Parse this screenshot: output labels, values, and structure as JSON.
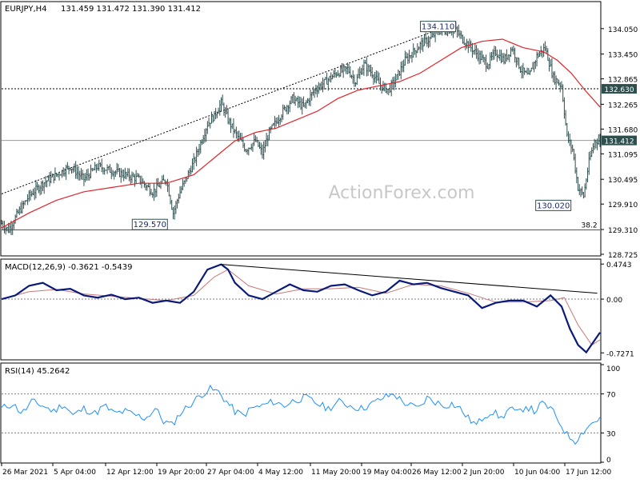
{
  "header": {
    "symbol": "EURJPY,H4",
    "ohlc": "131.459 131.472 131.390 131.412"
  },
  "watermark": "ActionForex.com",
  "colors": {
    "background": "#ffffff",
    "candle": "#2f4f4f",
    "ma": "#e0252b",
    "macd_line": "#0a1a7a",
    "macd_signal": "#c87878",
    "rsi_line": "#1e90ff",
    "grid_dash": "#808080",
    "label_box": "#2f4f4f"
  },
  "chart_data": [
    {
      "type": "candlestick",
      "name": "price",
      "ylim": [
        128.725,
        134.65
      ],
      "y_ticks": [
        "134.050",
        "133.450",
        "132.865",
        "132.265",
        "131.680",
        "131.095",
        "130.495",
        "129.910",
        "129.310",
        "128.725"
      ],
      "x_tick_labels": [
        "26 Mar 2021",
        "5 Apr 04:00",
        "12 Apr 12:00",
        "19 Apr 20:00",
        "27 Apr 04:00",
        "4 May 12:00",
        "11 May 20:00",
        "19 May 04:00",
        "26 May 12:00",
        "2 Jun 20:00",
        "10 Jun 04:00",
        "17 Jun 12:00"
      ],
      "price_path": [
        [
          0,
          129.45
        ],
        [
          5,
          129.3
        ],
        [
          12,
          129.7
        ],
        [
          20,
          130.1
        ],
        [
          30,
          130.4
        ],
        [
          40,
          130.6
        ],
        [
          50,
          130.8
        ],
        [
          60,
          130.5
        ],
        [
          70,
          130.8
        ],
        [
          80,
          130.7
        ],
        [
          90,
          130.6
        ],
        [
          100,
          130.5
        ],
        [
          110,
          130.2
        ],
        [
          120,
          130.5
        ],
        [
          125,
          129.7
        ],
        [
          130,
          130.2
        ],
        [
          140,
          130.9
        ],
        [
          150,
          131.8
        ],
        [
          155,
          132.0
        ],
        [
          160,
          132.3
        ],
        [
          165,
          131.9
        ],
        [
          170,
          131.6
        ],
        [
          178,
          131.2
        ],
        [
          185,
          131.4
        ],
        [
          190,
          131.1
        ],
        [
          195,
          131.6
        ],
        [
          205,
          132.1
        ],
        [
          212,
          132.4
        ],
        [
          220,
          132.2
        ],
        [
          228,
          132.6
        ],
        [
          236,
          132.8
        ],
        [
          244,
          133.0
        ],
        [
          252,
          133.1
        ],
        [
          258,
          132.8
        ],
        [
          264,
          133.2
        ],
        [
          270,
          133.0
        ],
        [
          276,
          132.7
        ],
        [
          282,
          132.6
        ],
        [
          288,
          132.9
        ],
        [
          294,
          133.3
        ],
        [
          300,
          133.5
        ],
        [
          306,
          133.7
        ],
        [
          312,
          133.8
        ],
        [
          318,
          134.0
        ],
        [
          324,
          134.0
        ],
        [
          330,
          134.05
        ],
        [
          336,
          133.8
        ],
        [
          342,
          133.6
        ],
        [
          348,
          133.4
        ],
        [
          354,
          133.2
        ],
        [
          360,
          133.5
        ],
        [
          366,
          133.3
        ],
        [
          372,
          133.6
        ],
        [
          378,
          133.1
        ],
        [
          384,
          132.9
        ],
        [
          390,
          133.4
        ],
        [
          396,
          133.6
        ],
        [
          402,
          132.9
        ],
        [
          408,
          132.7
        ],
        [
          412,
          131.5
        ],
        [
          416,
          131.2
        ],
        [
          420,
          130.3
        ],
        [
          424,
          130.1
        ],
        [
          428,
          130.9
        ],
        [
          432,
          131.4
        ],
        [
          436,
          131.41
        ]
      ],
      "ma_path": [
        [
          0,
          129.35
        ],
        [
          20,
          129.7
        ],
        [
          40,
          130.0
        ],
        [
          60,
          130.2
        ],
        [
          80,
          130.3
        ],
        [
          100,
          130.4
        ],
        [
          120,
          130.4
        ],
        [
          140,
          130.6
        ],
        [
          155,
          131.0
        ],
        [
          170,
          131.4
        ],
        [
          185,
          131.6
        ],
        [
          200,
          131.7
        ],
        [
          215,
          131.9
        ],
        [
          230,
          132.1
        ],
        [
          245,
          132.4
        ],
        [
          260,
          132.6
        ],
        [
          275,
          132.7
        ],
        [
          290,
          132.8
        ],
        [
          305,
          133.0
        ],
        [
          320,
          133.3
        ],
        [
          335,
          133.6
        ],
        [
          350,
          133.75
        ],
        [
          365,
          133.8
        ],
        [
          380,
          133.6
        ],
        [
          395,
          133.5
        ],
        [
          405,
          133.3
        ],
        [
          415,
          133.0
        ],
        [
          425,
          132.6
        ],
        [
          436,
          132.2
        ]
      ],
      "trendline_points": [
        [
          0,
          130.15
        ],
        [
          320,
          134.05
        ]
      ],
      "horizontal_levels": [
        132.63,
        131.412,
        129.3
      ],
      "labels": [
        {
          "text": "134.110",
          "x": 318,
          "y": 134.11
        },
        {
          "text": "129.570",
          "x": 108,
          "y": 129.57
        },
        {
          "text": "130.020",
          "x": 402,
          "y": 130.02
        },
        {
          "text": "132.630",
          "axis": true,
          "y": 132.63
        },
        {
          "text": "131.412",
          "axis": true,
          "y": 131.412
        },
        {
          "text": "38.2",
          "x": 434,
          "y": 129.3
        }
      ]
    },
    {
      "type": "line",
      "name": "MACD(12,26,9)",
      "title": "MACD(12,26,9) -0.3621 -0.5439",
      "ylim": [
        -0.8,
        0.52
      ],
      "y_ticks": [
        "0.4743",
        "0.00",
        "-0.7271"
      ],
      "series_macd": [
        [
          0,
          0.0
        ],
        [
          10,
          0.05
        ],
        [
          20,
          0.18
        ],
        [
          30,
          0.22
        ],
        [
          40,
          0.12
        ],
        [
          50,
          0.14
        ],
        [
          60,
          0.05
        ],
        [
          70,
          0.02
        ],
        [
          80,
          0.06
        ],
        [
          90,
          0.0
        ],
        [
          100,
          0.02
        ],
        [
          110,
          -0.05
        ],
        [
          120,
          -0.02
        ],
        [
          130,
          -0.05
        ],
        [
          140,
          0.1
        ],
        [
          150,
          0.4
        ],
        [
          160,
          0.47
        ],
        [
          165,
          0.4
        ],
        [
          170,
          0.22
        ],
        [
          180,
          0.05
        ],
        [
          190,
          0.0
        ],
        [
          200,
          0.1
        ],
        [
          210,
          0.2
        ],
        [
          220,
          0.12
        ],
        [
          230,
          0.1
        ],
        [
          240,
          0.18
        ],
        [
          250,
          0.2
        ],
        [
          260,
          0.12
        ],
        [
          270,
          0.05
        ],
        [
          280,
          0.1
        ],
        [
          290,
          0.25
        ],
        [
          300,
          0.2
        ],
        [
          310,
          0.22
        ],
        [
          320,
          0.15
        ],
        [
          330,
          0.1
        ],
        [
          340,
          0.05
        ],
        [
          350,
          -0.12
        ],
        [
          360,
          -0.05
        ],
        [
          370,
          -0.02
        ],
        [
          380,
          -0.02
        ],
        [
          390,
          -0.1
        ],
        [
          400,
          0.05
        ],
        [
          408,
          -0.1
        ],
        [
          414,
          -0.4
        ],
        [
          420,
          -0.62
        ],
        [
          426,
          -0.72
        ],
        [
          436,
          -0.45
        ]
      ],
      "series_signal": [
        [
          0,
          0.0
        ],
        [
          20,
          0.1
        ],
        [
          40,
          0.13
        ],
        [
          60,
          0.07
        ],
        [
          80,
          0.04
        ],
        [
          100,
          0.01
        ],
        [
          120,
          -0.02
        ],
        [
          140,
          0.05
        ],
        [
          155,
          0.3
        ],
        [
          165,
          0.4
        ],
        [
          180,
          0.18
        ],
        [
          200,
          0.07
        ],
        [
          220,
          0.14
        ],
        [
          240,
          0.14
        ],
        [
          260,
          0.16
        ],
        [
          280,
          0.08
        ],
        [
          300,
          0.2
        ],
        [
          320,
          0.18
        ],
        [
          340,
          0.08
        ],
        [
          360,
          -0.04
        ],
        [
          380,
          -0.04
        ],
        [
          400,
          -0.02
        ],
        [
          410,
          0.02
        ],
        [
          420,
          -0.35
        ],
        [
          430,
          -0.62
        ],
        [
          436,
          -0.55
        ]
      ],
      "trendline_points": [
        [
          160,
          0.47
        ],
        [
          434,
          0.08
        ]
      ]
    },
    {
      "type": "line",
      "name": "RSI(14)",
      "title": "RSI(14) 45.2642",
      "ylim": [
        0,
        100
      ],
      "y_ticks": [
        "100",
        "70",
        "30",
        "0"
      ],
      "reference_levels": [
        70,
        30
      ],
      "series": [
        [
          0,
          55
        ],
        [
          8,
          60
        ],
        [
          15,
          50
        ],
        [
          22,
          62
        ],
        [
          30,
          58
        ],
        [
          38,
          52
        ],
        [
          45,
          60
        ],
        [
          52,
          48
        ],
        [
          60,
          55
        ],
        [
          68,
          50
        ],
        [
          75,
          58
        ],
        [
          82,
          50
        ],
        [
          90,
          52
        ],
        [
          98,
          48
        ],
        [
          105,
          45
        ],
        [
          112,
          55
        ],
        [
          118,
          42
        ],
        [
          124,
          38
        ],
        [
          130,
          50
        ],
        [
          138,
          60
        ],
        [
          146,
          70
        ],
        [
          152,
          75
        ],
        [
          158,
          72
        ],
        [
          164,
          62
        ],
        [
          170,
          52
        ],
        [
          176,
          48
        ],
        [
          182,
          55
        ],
        [
          190,
          58
        ],
        [
          198,
          62
        ],
        [
          206,
          58
        ],
        [
          214,
          64
        ],
        [
          222,
          66
        ],
        [
          230,
          60
        ],
        [
          238,
          55
        ],
        [
          246,
          62
        ],
        [
          254,
          58
        ],
        [
          262,
          55
        ],
        [
          270,
          60
        ],
        [
          278,
          66
        ],
        [
          286,
          70
        ],
        [
          292,
          62
        ],
        [
          298,
          58
        ],
        [
          304,
          55
        ],
        [
          310,
          66
        ],
        [
          316,
          62
        ],
        [
          322,
          58
        ],
        [
          328,
          60
        ],
        [
          334,
          55
        ],
        [
          340,
          45
        ],
        [
          346,
          38
        ],
        [
          352,
          48
        ],
        [
          358,
          52
        ],
        [
          364,
          45
        ],
        [
          370,
          55
        ],
        [
          376,
          50
        ],
        [
          382,
          58
        ],
        [
          388,
          52
        ],
        [
          394,
          60
        ],
        [
          400,
          55
        ],
        [
          406,
          42
        ],
        [
          412,
          28
        ],
        [
          418,
          22
        ],
        [
          424,
          32
        ],
        [
          430,
          40
        ],
        [
          436,
          45
        ]
      ]
    }
  ]
}
